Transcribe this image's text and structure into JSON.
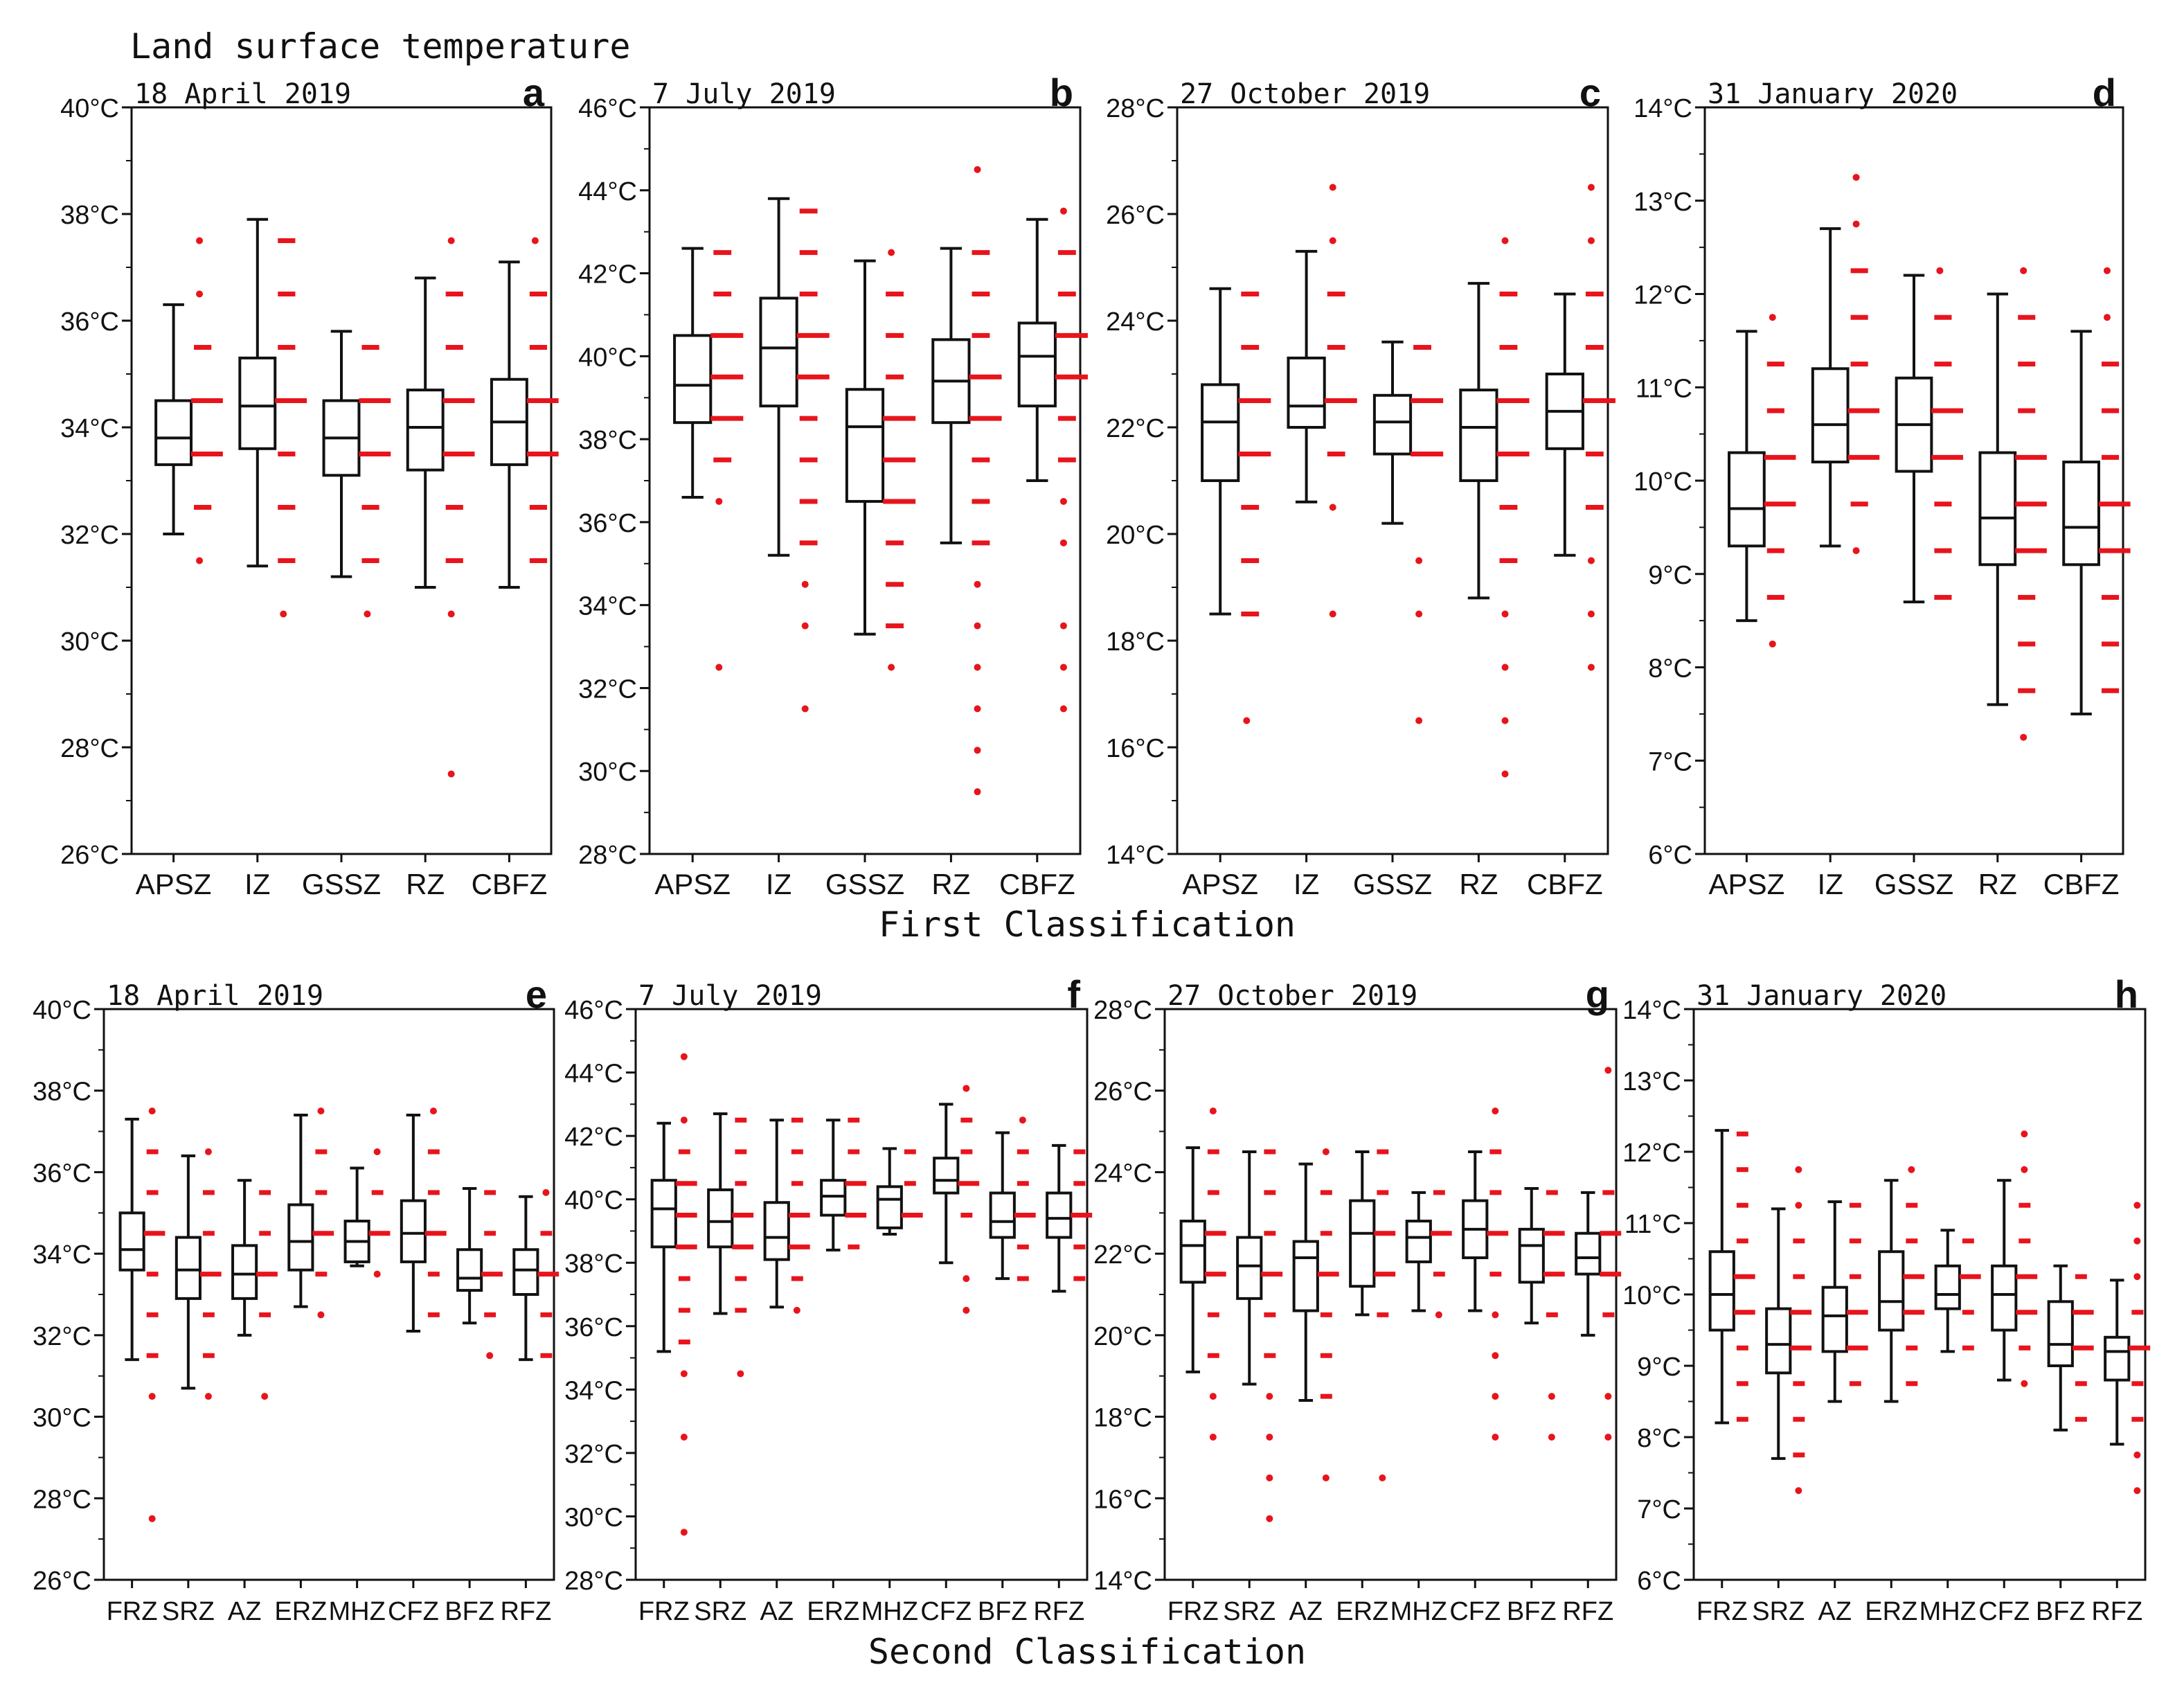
{
  "figure_title": "Land surface temperature",
  "row_labels": {
    "first": "First Classification",
    "second": "Second Classification"
  },
  "colors": {
    "box": "#111111",
    "outlier": "#e8141c",
    "background": "#ffffff"
  },
  "chart_data": [
    {
      "panel": "a",
      "date": "18 April 2019",
      "type": "box",
      "ylim": [
        26,
        40
      ],
      "yticks": [
        26,
        28,
        30,
        32,
        34,
        36,
        38,
        40
      ],
      "unit": "°C",
      "categories": [
        "APSZ",
        "IZ",
        "GSSZ",
        "RZ",
        "CBFZ"
      ],
      "boxes": [
        {
          "min": 32.0,
          "q1": 33.3,
          "median": 33.8,
          "q3": 34.5,
          "max": 36.3,
          "outliers": [
            31.5,
            32.5,
            33.5,
            34.5,
            35.5,
            36.5,
            37.5
          ]
        },
        {
          "min": 31.4,
          "q1": 33.6,
          "median": 34.4,
          "q3": 35.3,
          "max": 37.9,
          "outliers": [
            30.5,
            31.5,
            32.5,
            33.5,
            34.5,
            35.5,
            36.5,
            37.5
          ]
        },
        {
          "min": 31.2,
          "q1": 33.1,
          "median": 33.8,
          "q3": 34.5,
          "max": 35.8,
          "outliers": [
            30.5,
            31.5,
            32.5,
            33.5,
            34.5,
            35.5
          ]
        },
        {
          "min": 31.0,
          "q1": 33.2,
          "median": 34.0,
          "q3": 34.7,
          "max": 36.8,
          "outliers": [
            27.5,
            30.5,
            31.5,
            32.5,
            33.5,
            34.5,
            35.5,
            36.5,
            37.5
          ]
        },
        {
          "min": 31.0,
          "q1": 33.3,
          "median": 34.1,
          "q3": 34.9,
          "max": 37.1,
          "outliers": [
            31.5,
            32.5,
            33.5,
            34.5,
            35.5,
            36.5,
            37.5
          ]
        }
      ]
    },
    {
      "panel": "b",
      "date": "7 July 2019",
      "type": "box",
      "ylim": [
        28,
        46
      ],
      "yticks": [
        28,
        30,
        32,
        34,
        36,
        38,
        40,
        42,
        44,
        46
      ],
      "unit": "°C",
      "categories": [
        "APSZ",
        "IZ",
        "GSSZ",
        "RZ",
        "CBFZ"
      ],
      "boxes": [
        {
          "min": 36.6,
          "q1": 38.4,
          "median": 39.3,
          "q3": 40.5,
          "max": 42.6,
          "outliers": [
            32.5,
            36.5,
            37.5,
            38.5,
            39.5,
            40.5,
            41.5,
            42.5
          ]
        },
        {
          "min": 35.2,
          "q1": 38.8,
          "median": 40.2,
          "q3": 41.4,
          "max": 43.8,
          "outliers": [
            31.5,
            33.5,
            34.5,
            35.5,
            36.5,
            37.5,
            38.5,
            39.5,
            40.5,
            41.5,
            42.5,
            43.5
          ]
        },
        {
          "min": 33.3,
          "q1": 36.5,
          "median": 38.3,
          "q3": 39.2,
          "max": 42.3,
          "outliers": [
            32.5,
            33.5,
            34.5,
            35.5,
            36.5,
            37.5,
            38.5,
            39.5,
            40.5,
            41.5,
            42.5
          ]
        },
        {
          "min": 35.5,
          "q1": 38.4,
          "median": 39.4,
          "q3": 40.4,
          "max": 42.6,
          "outliers": [
            29.5,
            30.5,
            31.5,
            32.5,
            33.5,
            34.5,
            35.5,
            36.5,
            37.5,
            38.5,
            39.5,
            40.5,
            41.5,
            42.5,
            44.5
          ]
        },
        {
          "min": 37.0,
          "q1": 38.8,
          "median": 40.0,
          "q3": 40.8,
          "max": 43.3,
          "outliers": [
            31.5,
            32.5,
            33.5,
            35.5,
            36.5,
            37.5,
            38.5,
            39.5,
            40.5,
            41.5,
            42.5,
            43.5
          ]
        }
      ]
    },
    {
      "panel": "c",
      "date": "27 October 2019",
      "type": "box",
      "ylim": [
        14,
        28
      ],
      "yticks": [
        14,
        16,
        18,
        20,
        22,
        24,
        26,
        28
      ],
      "unit": "°C",
      "categories": [
        "APSZ",
        "IZ",
        "GSSZ",
        "RZ",
        "CBFZ"
      ],
      "boxes": [
        {
          "min": 18.5,
          "q1": 21.0,
          "median": 22.1,
          "q3": 22.8,
          "max": 24.6,
          "outliers": [
            16.5,
            18.5,
            19.5,
            20.5,
            21.5,
            22.5,
            23.5,
            24.5
          ]
        },
        {
          "min": 20.6,
          "q1": 22.0,
          "median": 22.4,
          "q3": 23.3,
          "max": 25.3,
          "outliers": [
            18.5,
            20.5,
            21.5,
            22.5,
            23.5,
            24.5,
            25.5,
            26.5
          ]
        },
        {
          "min": 20.2,
          "q1": 21.5,
          "median": 22.1,
          "q3": 22.6,
          "max": 23.6,
          "outliers": [
            16.5,
            18.5,
            19.5,
            21.5,
            22.5,
            23.5
          ]
        },
        {
          "min": 18.8,
          "q1": 21.0,
          "median": 22.0,
          "q3": 22.7,
          "max": 24.7,
          "outliers": [
            15.5,
            16.5,
            17.5,
            18.5,
            19.5,
            20.5,
            21.5,
            22.5,
            23.5,
            24.5,
            25.5
          ]
        },
        {
          "min": 19.6,
          "q1": 21.6,
          "median": 22.3,
          "q3": 23.0,
          "max": 24.5,
          "outliers": [
            17.5,
            18.5,
            19.5,
            20.5,
            21.5,
            22.5,
            23.5,
            24.5,
            25.5,
            26.5
          ]
        }
      ]
    },
    {
      "panel": "d",
      "date": "31 January 2020",
      "type": "box",
      "ylim": [
        6,
        14
      ],
      "yticks": [
        6,
        7,
        8,
        9,
        10,
        11,
        12,
        13,
        14
      ],
      "unit": "°C",
      "categories": [
        "APSZ",
        "IZ",
        "GSSZ",
        "RZ",
        "CBFZ"
      ],
      "boxes": [
        {
          "min": 8.5,
          "q1": 9.3,
          "median": 9.7,
          "q3": 10.3,
          "max": 11.6,
          "outliers": [
            8.25,
            8.75,
            9.25,
            9.75,
            10.25,
            10.75,
            11.25,
            11.75
          ]
        },
        {
          "min": 9.3,
          "q1": 10.2,
          "median": 10.6,
          "q3": 11.2,
          "max": 12.7,
          "outliers": [
            9.25,
            9.75,
            10.25,
            10.75,
            11.25,
            11.75,
            12.25,
            12.75,
            13.25
          ]
        },
        {
          "min": 8.7,
          "q1": 10.1,
          "median": 10.6,
          "q3": 11.1,
          "max": 12.2,
          "outliers": [
            8.75,
            9.25,
            9.75,
            10.25,
            10.75,
            11.25,
            11.75,
            12.25
          ]
        },
        {
          "min": 7.6,
          "q1": 9.1,
          "median": 9.6,
          "q3": 10.3,
          "max": 12.0,
          "outliers": [
            7.25,
            7.75,
            8.25,
            8.75,
            9.25,
            9.75,
            10.25,
            10.75,
            11.25,
            11.75,
            12.25
          ]
        },
        {
          "min": 7.5,
          "q1": 9.1,
          "median": 9.5,
          "q3": 10.2,
          "max": 11.6,
          "outliers": [
            7.75,
            8.25,
            8.75,
            9.25,
            9.75,
            10.25,
            10.75,
            11.25,
            11.75,
            12.25
          ]
        }
      ]
    },
    {
      "panel": "e",
      "date": "18 April 2019",
      "type": "box",
      "ylim": [
        26,
        40
      ],
      "yticks": [
        26,
        28,
        30,
        32,
        34,
        36,
        38,
        40
      ],
      "unit": "°C",
      "categories": [
        "FRZ",
        "SRZ",
        "AZ",
        "ERZ",
        "MHZ",
        "CFZ",
        "BFZ",
        "RFZ"
      ],
      "boxes": [
        {
          "min": 31.4,
          "q1": 33.6,
          "median": 34.1,
          "q3": 35.0,
          "max": 37.3,
          "outliers": [
            27.5,
            30.5,
            31.5,
            32.5,
            33.5,
            34.5,
            35.5,
            36.5,
            37.5
          ]
        },
        {
          "min": 30.7,
          "q1": 32.9,
          "median": 33.6,
          "q3": 34.4,
          "max": 36.4,
          "outliers": [
            30.5,
            31.5,
            32.5,
            33.5,
            34.5,
            35.5,
            36.5
          ]
        },
        {
          "min": 32.0,
          "q1": 32.9,
          "median": 33.5,
          "q3": 34.2,
          "max": 35.8,
          "outliers": [
            30.5,
            32.5,
            33.5,
            34.5,
            35.5
          ]
        },
        {
          "min": 32.7,
          "q1": 33.6,
          "median": 34.3,
          "q3": 35.2,
          "max": 37.4,
          "outliers": [
            32.5,
            33.5,
            34.5,
            35.5,
            36.5,
            37.5
          ]
        },
        {
          "min": 33.7,
          "q1": 33.8,
          "median": 34.3,
          "q3": 34.8,
          "max": 36.1,
          "outliers": [
            33.5,
            34.5,
            35.5,
            36.5
          ]
        },
        {
          "min": 32.1,
          "q1": 33.8,
          "median": 34.5,
          "q3": 35.3,
          "max": 37.4,
          "outliers": [
            32.5,
            33.5,
            34.5,
            35.5,
            36.5,
            37.5
          ]
        },
        {
          "min": 32.3,
          "q1": 33.1,
          "median": 33.4,
          "q3": 34.1,
          "max": 35.6,
          "outliers": [
            31.5,
            32.5,
            33.5,
            34.5,
            35.5
          ]
        },
        {
          "min": 31.4,
          "q1": 33.0,
          "median": 33.6,
          "q3": 34.1,
          "max": 35.4,
          "outliers": [
            31.5,
            32.5,
            33.5,
            34.5,
            35.5
          ]
        }
      ]
    },
    {
      "panel": "f",
      "date": "7 July 2019",
      "type": "box",
      "ylim": [
        28,
        46
      ],
      "yticks": [
        28,
        30,
        32,
        34,
        36,
        38,
        40,
        42,
        44,
        46
      ],
      "unit": "°C",
      "categories": [
        "FRZ",
        "SRZ",
        "AZ",
        "ERZ",
        "MHZ",
        "CFZ",
        "BFZ",
        "RFZ"
      ],
      "boxes": [
        {
          "min": 35.2,
          "q1": 38.5,
          "median": 39.7,
          "q3": 40.6,
          "max": 42.4,
          "outliers": [
            29.5,
            32.5,
            34.5,
            35.5,
            36.5,
            37.5,
            38.5,
            39.5,
            40.5,
            41.5,
            42.5,
            44.5
          ]
        },
        {
          "min": 36.4,
          "q1": 38.5,
          "median": 39.3,
          "q3": 40.3,
          "max": 42.7,
          "outliers": [
            34.5,
            36.5,
            37.5,
            38.5,
            39.5,
            40.5,
            41.5,
            42.5
          ]
        },
        {
          "min": 36.6,
          "q1": 38.1,
          "median": 38.8,
          "q3": 39.9,
          "max": 42.5,
          "outliers": [
            36.5,
            37.5,
            38.5,
            39.5,
            40.5,
            41.5,
            42.5
          ]
        },
        {
          "min": 38.4,
          "q1": 39.5,
          "median": 40.1,
          "q3": 40.6,
          "max": 42.5,
          "outliers": [
            38.5,
            39.5,
            40.5,
            41.5,
            42.5
          ]
        },
        {
          "min": 38.9,
          "q1": 39.1,
          "median": 40.0,
          "q3": 40.4,
          "max": 41.6,
          "outliers": [
            39.5,
            40.5,
            41.5
          ]
        },
        {
          "min": 38.0,
          "q1": 40.2,
          "median": 40.6,
          "q3": 41.3,
          "max": 43.0,
          "outliers": [
            36.5,
            37.5,
            39.5,
            40.5,
            41.5,
            42.5,
            43.5
          ]
        },
        {
          "min": 37.5,
          "q1": 38.8,
          "median": 39.3,
          "q3": 40.2,
          "max": 42.1,
          "outliers": [
            37.5,
            38.5,
            39.5,
            40.5,
            41.5,
            42.5
          ]
        },
        {
          "min": 37.1,
          "q1": 38.8,
          "median": 39.4,
          "q3": 40.2,
          "max": 41.7,
          "outliers": [
            37.5,
            38.5,
            39.5,
            40.5,
            41.5
          ]
        }
      ]
    },
    {
      "panel": "g",
      "date": "27 October 2019",
      "type": "box",
      "ylim": [
        14,
        28
      ],
      "yticks": [
        14,
        16,
        18,
        20,
        22,
        24,
        26,
        28
      ],
      "unit": "°C",
      "categories": [
        "FRZ",
        "SRZ",
        "AZ",
        "ERZ",
        "MHZ",
        "CFZ",
        "BFZ",
        "RFZ"
      ],
      "boxes": [
        {
          "min": 19.1,
          "q1": 21.3,
          "median": 22.2,
          "q3": 22.8,
          "max": 24.6,
          "outliers": [
            17.5,
            18.5,
            19.5,
            20.5,
            21.5,
            22.5,
            23.5,
            24.5,
            25.5
          ]
        },
        {
          "min": 18.8,
          "q1": 20.9,
          "median": 21.7,
          "q3": 22.4,
          "max": 24.5,
          "outliers": [
            15.5,
            16.5,
            17.5,
            18.5,
            19.5,
            20.5,
            21.5,
            22.5,
            23.5,
            24.5
          ]
        },
        {
          "min": 18.4,
          "q1": 20.6,
          "median": 21.9,
          "q3": 22.3,
          "max": 24.2,
          "outliers": [
            16.5,
            18.5,
            19.5,
            20.5,
            21.5,
            22.5,
            23.5,
            24.5
          ]
        },
        {
          "min": 20.5,
          "q1": 21.2,
          "median": 22.5,
          "q3": 23.3,
          "max": 24.5,
          "outliers": [
            16.5,
            20.5,
            21.5,
            22.5,
            23.5,
            24.5
          ]
        },
        {
          "min": 20.6,
          "q1": 21.8,
          "median": 22.4,
          "q3": 22.8,
          "max": 23.5,
          "outliers": [
            20.5,
            21.5,
            22.5,
            23.5
          ]
        },
        {
          "min": 20.6,
          "q1": 21.9,
          "median": 22.6,
          "q3": 23.3,
          "max": 24.5,
          "outliers": [
            17.5,
            18.5,
            19.5,
            20.5,
            21.5,
            22.5,
            23.5,
            24.5,
            25.5
          ]
        },
        {
          "min": 20.3,
          "q1": 21.3,
          "median": 22.2,
          "q3": 22.6,
          "max": 23.6,
          "outliers": [
            17.5,
            18.5,
            20.5,
            21.5,
            22.5,
            23.5
          ]
        },
        {
          "min": 20.0,
          "q1": 21.5,
          "median": 21.9,
          "q3": 22.5,
          "max": 23.5,
          "outliers": [
            17.5,
            18.5,
            20.5,
            21.5,
            22.5,
            23.5,
            26.5
          ]
        }
      ]
    },
    {
      "panel": "h",
      "date": "31 January 2020",
      "type": "box",
      "ylim": [
        6,
        14
      ],
      "yticks": [
        6,
        7,
        8,
        9,
        10,
        11,
        12,
        13,
        14
      ],
      "unit": "°C",
      "categories": [
        "FRZ",
        "SRZ",
        "AZ",
        "ERZ",
        "MHZ",
        "CFZ",
        "BFZ",
        "RFZ"
      ],
      "boxes": [
        {
          "min": 8.2,
          "q1": 9.5,
          "median": 10.0,
          "q3": 10.6,
          "max": 12.3,
          "outliers": [
            8.25,
            8.75,
            9.25,
            9.75,
            10.25,
            10.75,
            11.25,
            11.75,
            12.25
          ]
        },
        {
          "min": 7.7,
          "q1": 8.9,
          "median": 9.3,
          "q3": 9.8,
          "max": 11.2,
          "outliers": [
            7.25,
            7.75,
            8.25,
            8.75,
            9.25,
            9.75,
            10.25,
            10.75,
            11.25,
            11.75
          ]
        },
        {
          "min": 8.5,
          "q1": 9.2,
          "median": 9.7,
          "q3": 10.1,
          "max": 11.3,
          "outliers": [
            8.75,
            9.25,
            9.75,
            10.25,
            10.75,
            11.25
          ]
        },
        {
          "min": 8.5,
          "q1": 9.5,
          "median": 9.9,
          "q3": 10.6,
          "max": 11.6,
          "outliers": [
            8.75,
            9.25,
            9.75,
            10.25,
            10.75,
            11.25,
            11.75
          ]
        },
        {
          "min": 9.2,
          "q1": 9.8,
          "median": 10.0,
          "q3": 10.4,
          "max": 10.9,
          "outliers": [
            9.25,
            9.75,
            10.25,
            10.75
          ]
        },
        {
          "min": 8.8,
          "q1": 9.5,
          "median": 10.0,
          "q3": 10.4,
          "max": 11.6,
          "outliers": [
            8.75,
            9.25,
            9.75,
            10.25,
            10.75,
            11.25,
            11.75,
            12.25
          ]
        },
        {
          "min": 8.1,
          "q1": 9.0,
          "median": 9.3,
          "q3": 9.9,
          "max": 10.4,
          "outliers": [
            8.25,
            8.75,
            9.25,
            9.75,
            10.25
          ]
        },
        {
          "min": 7.9,
          "q1": 8.8,
          "median": 9.2,
          "q3": 9.4,
          "max": 10.2,
          "outliers": [
            7.25,
            7.75,
            8.25,
            8.75,
            9.25,
            9.75,
            10.25,
            10.75,
            11.25
          ]
        }
      ]
    }
  ]
}
